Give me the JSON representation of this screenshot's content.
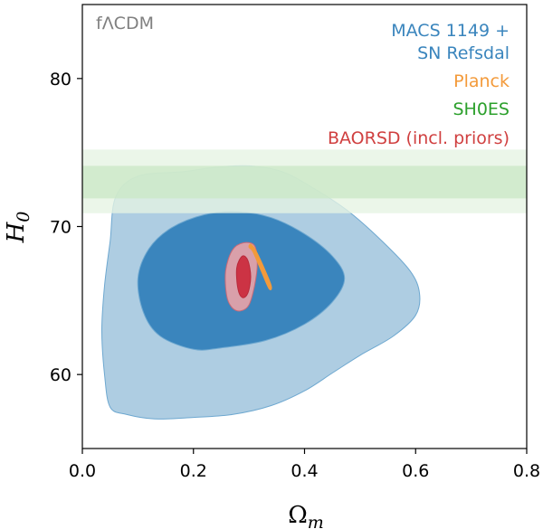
{
  "chart_data": {
    "type": "contour",
    "model_label": "fΛCDM",
    "xlabel": "Ω",
    "xlabel_sub": "m",
    "ylabel": "H",
    "ylabel_sub": "0",
    "xlim": [
      0.0,
      0.8
    ],
    "ylim": [
      55,
      85
    ],
    "xticks": [
      0.0,
      0.2,
      0.4,
      0.6,
      0.8
    ],
    "xtick_labels": [
      "0.0",
      "0.2",
      "0.4",
      "0.6",
      "0.8"
    ],
    "yticks": [
      60,
      70,
      80
    ],
    "ytick_labels": [
      "60",
      "70",
      "80"
    ],
    "legend": [
      {
        "label": "MACS 1149 +",
        "color": "#3a85bd"
      },
      {
        "label": "SN Refsdal",
        "color": "#3a85bd"
      },
      {
        "label": "Planck",
        "color": "#f39a3a"
      },
      {
        "label": "SH0ES",
        "color": "#2ca02c"
      },
      {
        "label": "BAORSD (incl. priors)",
        "color": "#d04040"
      }
    ],
    "colors": {
      "macs_outer": "#aecde2",
      "macs_inner": "#3a85bd",
      "macs_edge": "#6ea8d0",
      "shoes_outer": "#e6f4e3",
      "shoes_inner": "#cbe8c6",
      "baorsd_outer": "#d9a0aa",
      "baorsd_inner": "#cc3344",
      "planck": "#f39a3a",
      "model_label": "#808080"
    },
    "series": [
      {
        "name": "MACS 1149 + SN Refsdal",
        "level": "2-sigma",
        "points": [
          [
            0.05,
            57.8
          ],
          [
            0.04,
            60
          ],
          [
            0.035,
            63
          ],
          [
            0.04,
            66
          ],
          [
            0.05,
            69
          ],
          [
            0.06,
            72
          ],
          [
            0.1,
            73.4
          ],
          [
            0.18,
            73.7
          ],
          [
            0.24,
            74.0
          ],
          [
            0.3,
            74.1
          ],
          [
            0.36,
            73.7
          ],
          [
            0.42,
            72.5
          ],
          [
            0.48,
            71.0
          ],
          [
            0.54,
            69.0
          ],
          [
            0.59,
            67.0
          ],
          [
            0.607,
            65.5
          ],
          [
            0.6,
            64.0
          ],
          [
            0.56,
            62.6
          ],
          [
            0.5,
            61.3
          ],
          [
            0.45,
            60.1
          ],
          [
            0.4,
            58.9
          ],
          [
            0.34,
            57.9
          ],
          [
            0.27,
            57.3
          ],
          [
            0.2,
            57.1
          ],
          [
            0.13,
            57.0
          ],
          [
            0.08,
            57.3
          ]
        ]
      },
      {
        "name": "MACS 1149 + SN Refsdal",
        "level": "1-sigma",
        "points": [
          [
            0.1,
            66.5
          ],
          [
            0.12,
            68.5
          ],
          [
            0.16,
            69.9
          ],
          [
            0.22,
            70.8
          ],
          [
            0.28,
            71.0
          ],
          [
            0.34,
            70.6
          ],
          [
            0.4,
            69.5
          ],
          [
            0.45,
            68.0
          ],
          [
            0.472,
            66.5
          ],
          [
            0.45,
            64.9
          ],
          [
            0.4,
            63.4
          ],
          [
            0.33,
            62.3
          ],
          [
            0.25,
            61.8
          ],
          [
            0.2,
            61.7
          ],
          [
            0.14,
            62.6
          ],
          [
            0.11,
            64.2
          ]
        ]
      },
      {
        "name": "SH0ES",
        "level": "2-sigma",
        "y_range": [
          70.9,
          75.2
        ]
      },
      {
        "name": "SH0ES",
        "level": "1-sigma",
        "y_range": [
          71.9,
          74.1
        ]
      },
      {
        "name": "BAORSD (incl. priors)",
        "level": "2-sigma",
        "points": [
          [
            0.26,
            65.3
          ],
          [
            0.258,
            67.0
          ],
          [
            0.27,
            68.4
          ],
          [
            0.29,
            68.9
          ],
          [
            0.31,
            68.7
          ],
          [
            0.315,
            67.5
          ],
          [
            0.31,
            66.0
          ],
          [
            0.3,
            64.7
          ],
          [
            0.285,
            64.3
          ],
          [
            0.27,
            64.5
          ]
        ]
      },
      {
        "name": "BAORSD (incl. priors)",
        "level": "1-sigma",
        "points": [
          [
            0.28,
            65.8
          ],
          [
            0.278,
            67.2
          ],
          [
            0.288,
            68.0
          ],
          [
            0.298,
            67.7
          ],
          [
            0.303,
            66.6
          ],
          [
            0.298,
            65.5
          ],
          [
            0.288,
            65.2
          ]
        ]
      },
      {
        "name": "Planck",
        "level": "contour",
        "points": [
          [
            0.3,
            68.6
          ],
          [
            0.307,
            68.3
          ],
          [
            0.322,
            67.0
          ],
          [
            0.336,
            65.8
          ],
          [
            0.34,
            66.0
          ],
          [
            0.326,
            67.3
          ],
          [
            0.312,
            68.4
          ],
          [
            0.303,
            68.8
          ]
        ]
      }
    ]
  }
}
